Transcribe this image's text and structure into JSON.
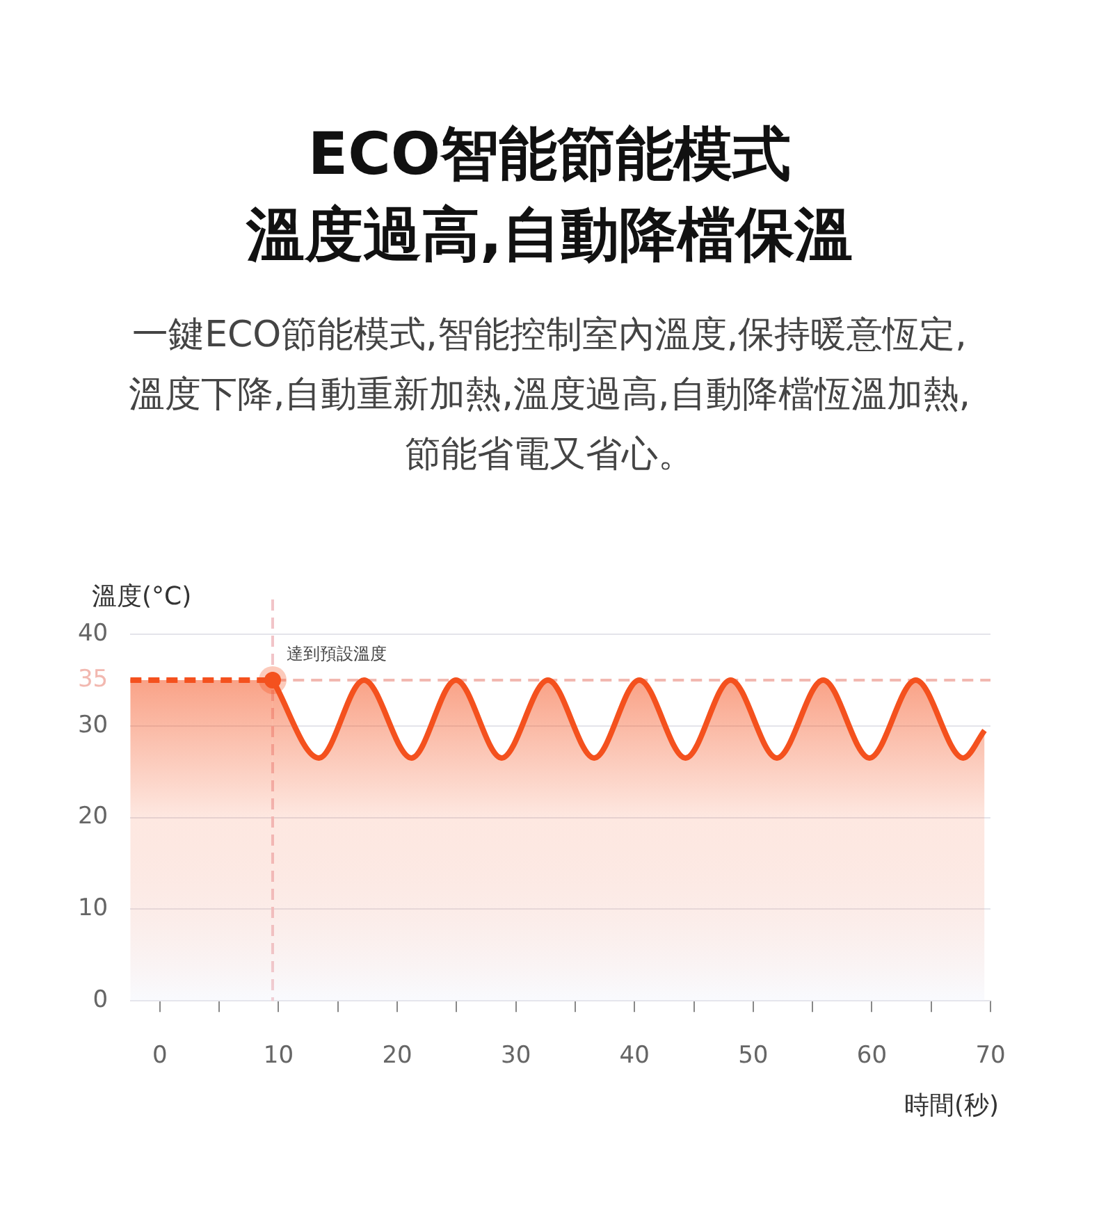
{
  "chart_data": {
    "type": "area",
    "title": "ECO智能節能模式",
    "subtitle": "溫度過高,自動降檔保溫",
    "xlabel": "時間(秒)",
    "ylabel": "溫度(°C)",
    "xlim": [
      -2.5,
      70
    ],
    "xticks": [
      0,
      {
        "value": 5,
        "label": null
      },
      10,
      {
        "value": 15,
        "label": null
      },
      20,
      {
        "value": 25,
        "label": null
      },
      30,
      {
        "value": 35,
        "label": null
      },
      40,
      {
        "value": 45,
        "label": null
      },
      50,
      {
        "value": 55,
        "label": null
      },
      60,
      {
        "value": 65,
        "label": null
      },
      70
    ],
    "ylim": [
      0,
      40
    ],
    "yticks": [
      0,
      10,
      20,
      30,
      35,
      40
    ],
    "grid": "y",
    "legend": false,
    "series": [
      {
        "color": "#f4511e",
        "line_style": "dashed",
        "x": [
          -2.5,
          9.5
        ],
        "values": [
          35,
          35
        ]
      },
      {
        "color": "#f4511e",
        "line_style": "solid",
        "x": [
          9.5,
          13.4,
          17.2,
          21.2,
          24.95,
          28.8,
          32.7,
          36.6,
          40.4,
          44.3,
          48.1,
          52.0,
          55.9,
          59.8,
          63.7,
          67.7,
          69.5
        ],
        "values": [
          35,
          26.5,
          35,
          26.5,
          35,
          26.5,
          35,
          26.5,
          35,
          26.5,
          35,
          26.5,
          35,
          26.5,
          35,
          26.5,
          29.5
        ]
      }
    ],
    "ref_lines": [
      {
        "axis": "y",
        "value": 35,
        "color": "#f2b8b0",
        "line_style": "dashed"
      },
      {
        "axis": "x",
        "value": 9.5,
        "color": "#f2c4c8",
        "line_style": "dashed"
      }
    ],
    "annotations": [
      "一鍵ECO節能模式,智能控制室內溫度,保持暖意恆定,溫度下降,自動重新加熱,溫度過高,自動降檔恆溫加熱,節能省電又省心。",
      {
        "text": "達到預設溫度",
        "x": 9.5,
        "y": 35
      }
    ]
  }
}
